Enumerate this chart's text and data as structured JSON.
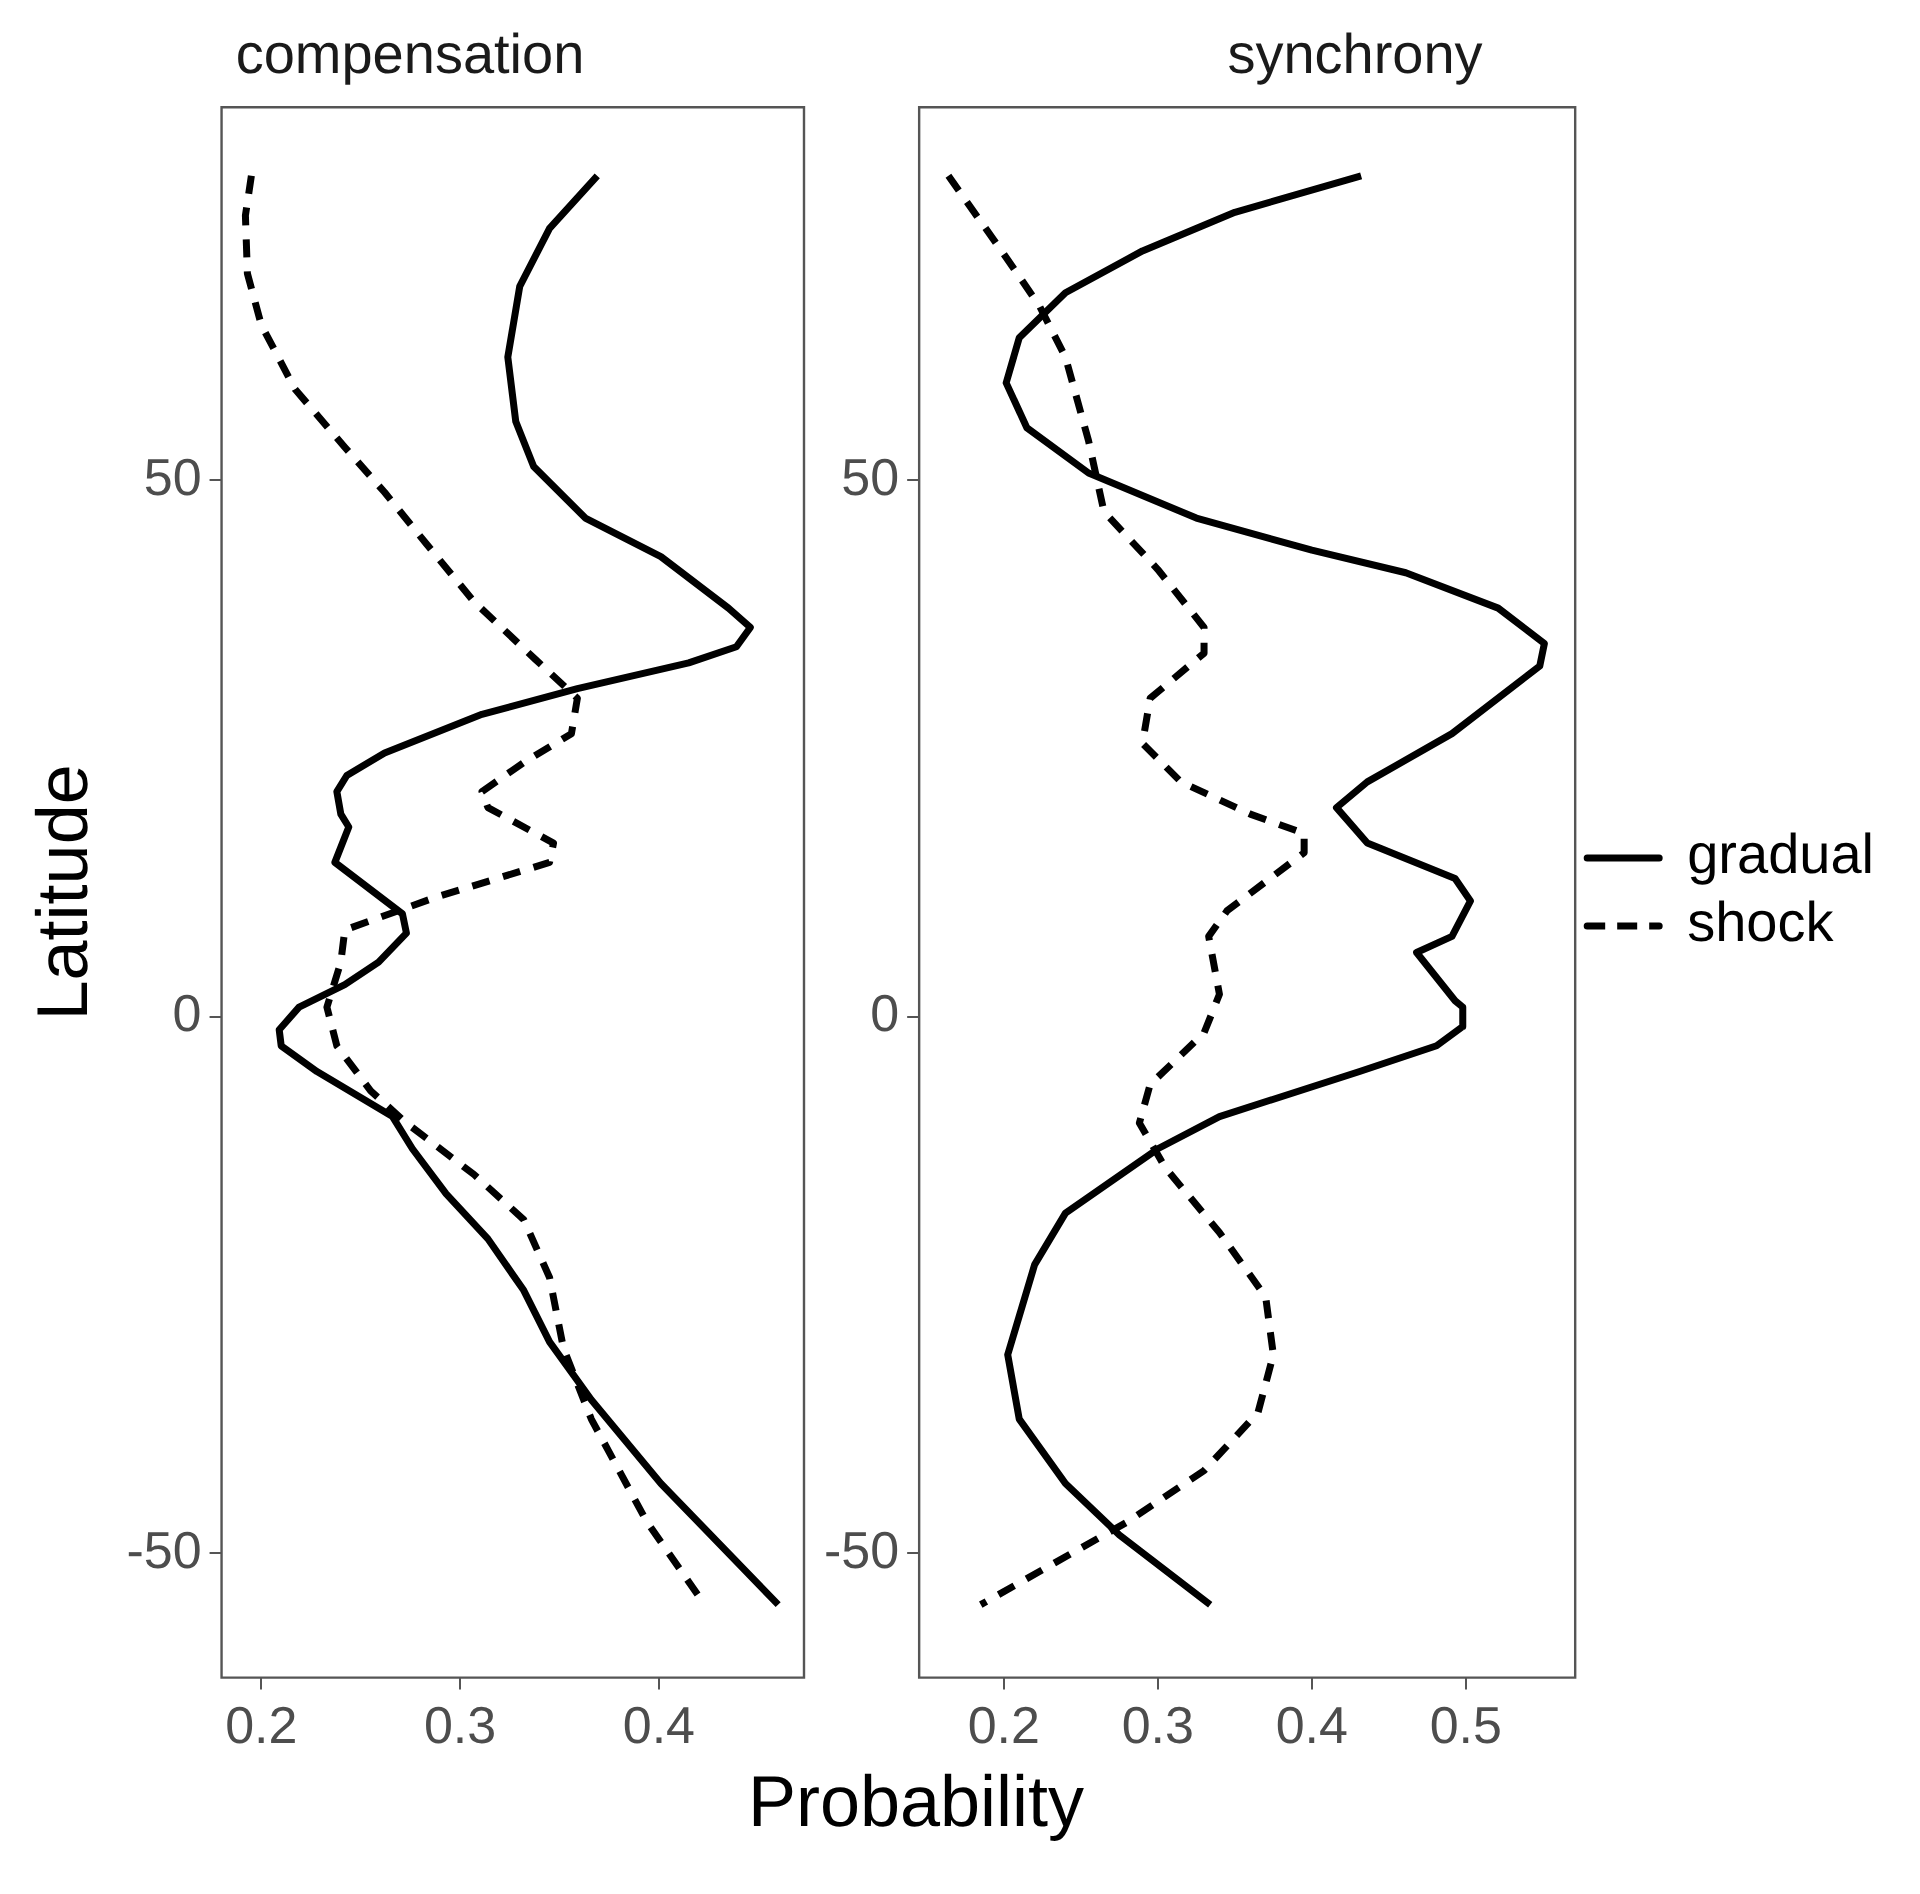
{
  "chart_data": [
    {
      "type": "line",
      "title": "compensation",
      "xlabel": "Probability",
      "ylabel": "Latitude",
      "xlim": [
        0.18,
        0.473
      ],
      "xticks": [
        0.2,
        0.3,
        0.4
      ],
      "ylim": [
        -61.6,
        84.8
      ],
      "yticks": [
        -50,
        0,
        50
      ],
      "marker": "none",
      "series": [
        {
          "color": "#000000",
          "line_style": "solid",
          "x": [
            0.369,
            0.345,
            0.33,
            0.324,
            0.328,
            0.337,
            0.363,
            0.401,
            0.435,
            0.446,
            0.439,
            0.415,
            0.359,
            0.311,
            0.262,
            0.243,
            0.238,
            0.24,
            0.244,
            0.237,
            0.271,
            0.273,
            0.259,
            0.242,
            0.219,
            0.209,
            0.21,
            0.228,
            0.266,
            0.276,
            0.293,
            0.314,
            0.332,
            0.345,
            0.366,
            0.401,
            0.46
          ],
          "values": [
            78.4,
            73.5,
            68.1,
            61.5,
            55.5,
            51.3,
            46.5,
            42.9,
            38.1,
            36.3,
            34.5,
            33.0,
            30.6,
            28.2,
            24.6,
            22.5,
            21.0,
            18.9,
            17.7,
            14.4,
            9.6,
            7.8,
            5.1,
            3.0,
            0.9,
            -1.2,
            -2.7,
            -5.1,
            -9.3,
            -12.3,
            -16.5,
            -20.7,
            -25.5,
            -30.3,
            -35.7,
            -43.5,
            -54.8
          ]
        },
        {
          "color": "#000000",
          "line_style": "dashed",
          "x": [
            0.195,
            0.192,
            0.193,
            0.2,
            0.217,
            0.242,
            0.262,
            0.283,
            0.307,
            0.338,
            0.359,
            0.356,
            0.332,
            0.311,
            0.314,
            0.347,
            0.345,
            0.287,
            0.242,
            0.24,
            0.233,
            0.238,
            0.255,
            0.273,
            0.307,
            0.332,
            0.345,
            0.352,
            0.366,
            0.394,
            0.423
          ],
          "values": [
            78.4,
            74.7,
            69.3,
            64.5,
            58.5,
            53.1,
            48.9,
            44.1,
            38.7,
            33.3,
            29.7,
            26.4,
            23.7,
            21.0,
            19.5,
            16.2,
            14.4,
            11.1,
            8.1,
            5.1,
            0.9,
            -2.7,
            -6.9,
            -9.9,
            -14.7,
            -18.9,
            -24.3,
            -30.9,
            -37.5,
            -47.1,
            -54.8
          ]
        }
      ]
    },
    {
      "type": "line",
      "title": "synchrony",
      "xlim": [
        0.145,
        0.571
      ],
      "xticks": [
        0.2,
        0.3,
        0.4,
        0.5
      ],
      "ylim": [
        -61.6,
        84.8
      ],
      "yticks": [
        -50,
        0,
        50
      ],
      "marker": "none",
      "legend": "right",
      "series": [
        {
          "name": "gradual",
          "color": "#000000",
          "line_style": "solid",
          "x": [
            0.432,
            0.35,
            0.29,
            0.24,
            0.21,
            0.2015,
            0.215,
            0.255,
            0.325,
            0.4,
            0.461,
            0.521,
            0.551,
            0.548,
            0.491,
            0.436,
            0.416,
            0.436,
            0.493,
            0.503,
            0.491,
            0.468,
            0.493,
            0.498,
            0.498,
            0.481,
            0.431,
            0.34,
            0.3,
            0.24,
            0.22,
            0.2025,
            0.21,
            0.24,
            0.275,
            0.334
          ],
          "values": [
            78.4,
            75.0,
            71.4,
            67.5,
            63.3,
            59.1,
            54.9,
            50.7,
            46.5,
            43.5,
            41.4,
            38.1,
            34.8,
            32.7,
            26.4,
            21.9,
            19.5,
            16.2,
            12.9,
            10.8,
            7.5,
            6.0,
            1.5,
            0.9,
            -0.9,
            -2.7,
            -5.1,
            -9.3,
            -12.3,
            -18.3,
            -23.1,
            -31.5,
            -37.5,
            -43.5,
            -48.3,
            -54.8
          ]
        },
        {
          "name": "shock",
          "color": "#000000",
          "line_style": "dashed",
          "x": [
            0.164,
            0.2,
            0.223,
            0.24,
            0.255,
            0.265,
            0.3,
            0.33,
            0.33,
            0.295,
            0.29,
            0.315,
            0.36,
            0.395,
            0.395,
            0.345,
            0.333,
            0.34,
            0.33,
            0.295,
            0.288,
            0.305,
            0.34,
            0.37,
            0.375,
            0.365,
            0.33,
            0.28,
            0.185
          ],
          "values": [
            78.4,
            71.1,
            66.3,
            61.5,
            53.7,
            47.1,
            41.7,
            36.3,
            33.9,
            29.7,
            25.5,
            21.9,
            18.9,
            17.1,
            15.3,
            9.9,
            7.5,
            2.1,
            -1.5,
            -6.3,
            -9.9,
            -14.1,
            -20.1,
            -26.1,
            -31.5,
            -36.9,
            -42.3,
            -47.1,
            -54.8
          ]
        }
      ]
    }
  ]
}
